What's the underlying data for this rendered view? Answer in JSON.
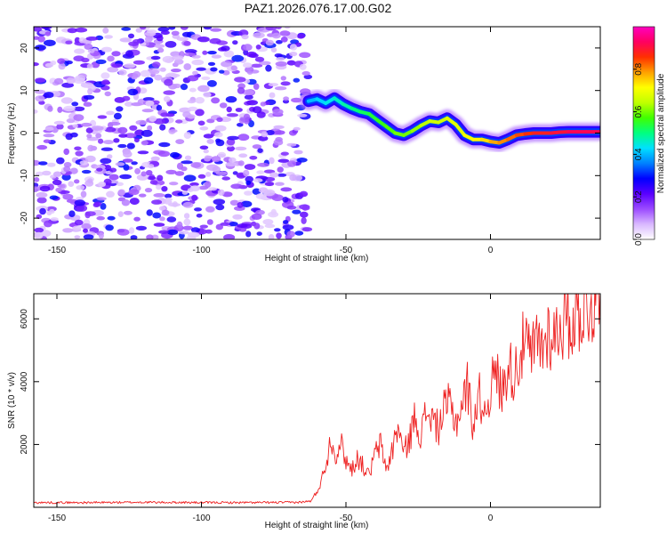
{
  "title": "PAZ1.2026.076.17.00.G02",
  "chart_data": [
    {
      "type": "heatmap",
      "title": "PAZ1.2026.076.17.00.G02",
      "xlabel": "Height of straight line (km)",
      "ylabel": "Frequency (Hz)",
      "xlim": [
        -158,
        38
      ],
      "ylim": [
        -25,
        25
      ],
      "x_ticks": [
        -150,
        -100,
        -50,
        0
      ],
      "y_ticks": [
        -20,
        -10,
        0,
        10,
        20
      ],
      "colorbar": {
        "label": "Normalized spectral amplitude",
        "range": [
          0,
          1
        ],
        "ticks": [
          "0.0",
          "0.2",
          "0.4",
          "0.6",
          "0.8"
        ],
        "tick_values": [
          0.0,
          0.2,
          0.4,
          0.6,
          0.8
        ],
        "colors": [
          "#ffffff",
          "#d9b8ff",
          "#9b4bff",
          "#5a00ff",
          "#0000ff",
          "#0080ff",
          "#00e0ff",
          "#00ff80",
          "#40ff00",
          "#c0ff00",
          "#ffff00",
          "#ffa000",
          "#ff3000",
          "#ff0060",
          "#ff00c0"
        ]
      },
      "noise_region": {
        "x_range": [
          -158,
          -63
        ],
        "amplitude_range": [
          0.05,
          0.3
        ]
      },
      "signal_ridge": {
        "x": [
          -63,
          -60,
          -57,
          -54,
          -51,
          -48,
          -45,
          -42,
          -39,
          -36,
          -33,
          -30,
          -27,
          -24,
          -21,
          -18,
          -15,
          -12,
          -9,
          -6,
          -3,
          0,
          3,
          6,
          9,
          12,
          15,
          18,
          21,
          24,
          27,
          30,
          33,
          36,
          38
        ],
        "frequency_hz": [
          7.5,
          8.0,
          7.0,
          8.2,
          6.8,
          5.8,
          5.0,
          4.5,
          3.0,
          1.5,
          0.0,
          -0.5,
          0.5,
          1.8,
          2.8,
          2.5,
          3.5,
          2.0,
          -0.5,
          -1.5,
          -1.5,
          -2.0,
          -2.3,
          -1.5,
          -0.5,
          -0.2,
          0.0,
          0.0,
          0.0,
          0.2,
          0.3,
          0.3,
          0.3,
          0.3,
          0.3
        ],
        "amplitude": [
          0.4,
          0.42,
          0.44,
          0.46,
          0.48,
          0.5,
          0.52,
          0.54,
          0.56,
          0.58,
          0.6,
          0.6,
          0.62,
          0.64,
          0.66,
          0.66,
          0.68,
          0.68,
          0.7,
          0.72,
          0.74,
          0.78,
          0.8,
          0.82,
          0.84,
          0.86,
          0.88,
          0.88,
          0.9,
          0.9,
          0.92,
          0.92,
          0.92,
          0.92,
          0.92
        ]
      }
    },
    {
      "type": "line",
      "xlabel": "Height of straight line (km)",
      "ylabel": "SNR (10 * v/v)",
      "xlim": [
        -158,
        38
      ],
      "ylim": [
        0,
        6800
      ],
      "x_ticks": [
        -150,
        -100,
        -50,
        0
      ],
      "y_ticks": [
        2000,
        4000,
        6000
      ],
      "series": [
        {
          "name": "SNR",
          "color": "#ee2020",
          "x": [
            -158,
            -140,
            -120,
            -100,
            -80,
            -66,
            -62,
            -60,
            -58,
            -56,
            -55,
            -54,
            -52,
            -50,
            -48,
            -46,
            -44,
            -42,
            -40,
            -38,
            -36,
            -34,
            -32,
            -30,
            -28,
            -26,
            -24,
            -22,
            -20,
            -18,
            -16,
            -14,
            -12,
            -10,
            -8,
            -6,
            -4,
            -2,
            0,
            2,
            4,
            6,
            8,
            10,
            12,
            14,
            16,
            18,
            20,
            22,
            24,
            26,
            28,
            30,
            32,
            34,
            36,
            38
          ],
          "values": [
            150,
            150,
            160,
            150,
            150,
            160,
            200,
            500,
            1000,
            1800,
            2300,
            1600,
            2100,
            1500,
            1200,
            1600,
            1300,
            1000,
            1700,
            2000,
            1200,
            1800,
            2600,
            1700,
            2200,
            2900,
            2300,
            3100,
            2800,
            2500,
            3100,
            3300,
            2700,
            3200,
            3900,
            2600,
            3600,
            3000,
            3800,
            4300,
            3600,
            4600,
            4200,
            4800,
            5300,
            4700,
            5300,
            5100,
            5600,
            5400,
            5800,
            6000,
            5900,
            6200,
            6300,
            6400,
            6500,
            6450
          ]
        }
      ]
    }
  ]
}
